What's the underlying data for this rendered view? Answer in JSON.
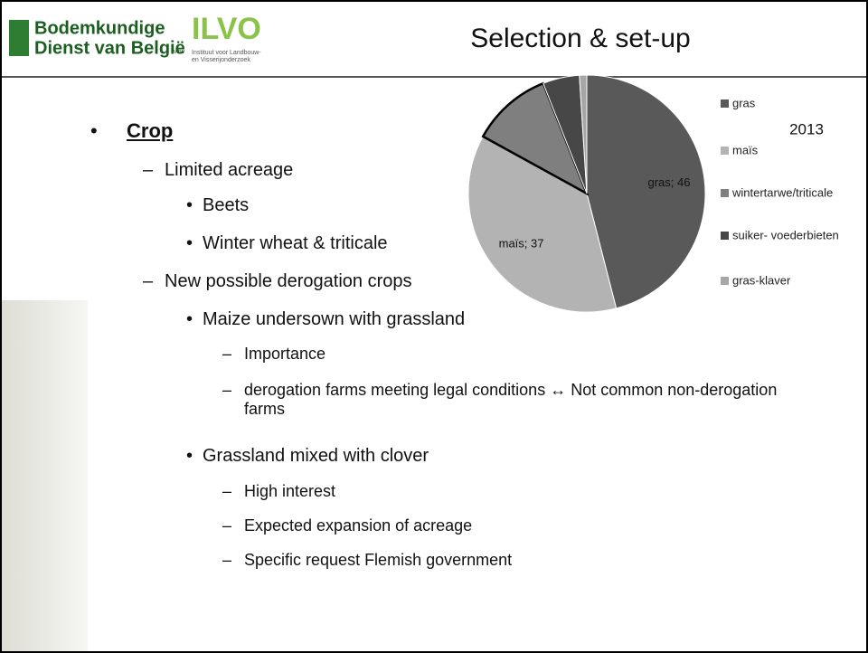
{
  "header": {
    "logo_left": {
      "line1": "Bodemkundige",
      "line2": "Dienst van België",
      "suffix": "vzw"
    },
    "logo_right": {
      "name": "ILVO",
      "line1": "Instituut voor Landbouw-",
      "line2": "en Visserijonderzoek"
    },
    "title": "Selection & set-up"
  },
  "bullets": [
    {
      "level": 0,
      "text": "Crop"
    },
    {
      "level": 1,
      "text": "Limited acreage"
    },
    {
      "level": 2,
      "text": "Beets"
    },
    {
      "level": 2,
      "text": "Winter wheat & triticale"
    },
    {
      "level": 1,
      "text": "New possible derogation crops"
    },
    {
      "level": 2,
      "text": "Maize undersown with grassland"
    },
    {
      "level": 3,
      "text": "Importance"
    },
    {
      "level": 3,
      "text": "derogation farms meeting legal conditions ↔ Not common non-derogation farms"
    },
    {
      "level": 2,
      "text": "Grassland mixed with clover"
    },
    {
      "level": 4,
      "text": "High interest"
    },
    {
      "level": 4,
      "text": "Expected expansion of acreage"
    },
    {
      "level": 4,
      "text": "Specific request Flemish government"
    }
  ],
  "chart_data": {
    "type": "pie",
    "title": "2013",
    "categories": [
      "gras",
      "maïs",
      "wintertarwe/triticale",
      "suiker- voederbieten",
      "gras-klaver"
    ],
    "values": [
      46,
      37,
      11,
      5,
      1
    ],
    "value_labels": [
      "gras; 46",
      "maïs; 37",
      null,
      null,
      null
    ],
    "colors": [
      "#595959",
      "#b3b3b3",
      "#7f7f7f",
      "#474747",
      "#a6a6a6"
    ],
    "legend": "right"
  }
}
